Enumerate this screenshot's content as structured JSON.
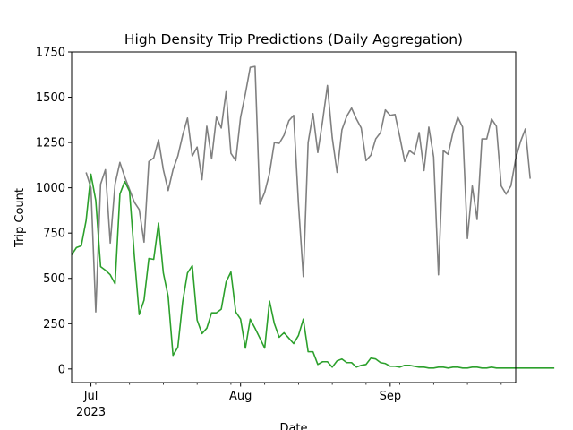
{
  "chart_data": {
    "type": "line",
    "title": "High Density Trip Predictions (Daily Aggregation)",
    "xlabel": "Date",
    "ylabel": "Trip Count",
    "xlim": [
      "2023-06-27",
      "2023-09-27"
    ],
    "ylim": [
      -75,
      1750
    ],
    "yticks": [
      0,
      250,
      500,
      750,
      1000,
      1250,
      1500,
      1750
    ],
    "xticks": [
      {
        "date": "2023-07-01",
        "label": "Jul",
        "sublabel": "2023"
      },
      {
        "date": "2023-08-01",
        "label": "Aug",
        "sublabel": ""
      },
      {
        "date": "2023-09-01",
        "label": "Sep",
        "sublabel": ""
      }
    ],
    "grid": false,
    "legend": "none",
    "series": [
      {
        "color": "#808080",
        "start_date": "2023-06-30",
        "values": [
          1085,
          1000,
          315,
          1020,
          1100,
          695,
          1020,
          1140,
          1060,
          990,
          920,
          880,
          700,
          1145,
          1165,
          1265,
          1100,
          985,
          1100,
          1175,
          1290,
          1385,
          1175,
          1225,
          1045,
          1340,
          1160,
          1390,
          1330,
          1530,
          1190,
          1150,
          1390,
          1520,
          1665,
          1670,
          910,
          975,
          1080,
          1250,
          1245,
          1290,
          1370,
          1400,
          910,
          510,
          1250,
          1410,
          1195,
          1370,
          1565,
          1275,
          1085,
          1320,
          1395,
          1440,
          1380,
          1330,
          1150,
          1180,
          1270,
          1305,
          1430,
          1400,
          1405,
          1280,
          1145,
          1205,
          1185,
          1305,
          1095,
          1335,
          1170,
          520,
          1205,
          1185,
          1305,
          1390,
          1335,
          720,
          1010,
          825,
          1270,
          1270,
          1380,
          1340,
          1010,
          965,
          1010,
          1160,
          1255,
          1325,
          1050
        ]
      },
      {
        "color": "#2ca02c",
        "start_date": "2023-06-27",
        "values": [
          630,
          670,
          680,
          820,
          1075,
          930,
          565,
          545,
          520,
          470,
          965,
          1035,
          980,
          620,
          300,
          380,
          610,
          605,
          805,
          530,
          400,
          75,
          120,
          370,
          530,
          570,
          270,
          195,
          225,
          310,
          310,
          330,
          480,
          535,
          315,
          275,
          115,
          275,
          225,
          170,
          115,
          375,
          250,
          175,
          200,
          170,
          140,
          185,
          275,
          95,
          95,
          25,
          40,
          40,
          10,
          45,
          55,
          35,
          35,
          10,
          20,
          25,
          60,
          55,
          35,
          30,
          15,
          15,
          10,
          20,
          20,
          15,
          10,
          10,
          5,
          5,
          10,
          10,
          5,
          10,
          10,
          5,
          5,
          10,
          10,
          5,
          5,
          10,
          5,
          5,
          5,
          5,
          5,
          5,
          5,
          5,
          5,
          5,
          5,
          5,
          5
        ]
      }
    ]
  }
}
